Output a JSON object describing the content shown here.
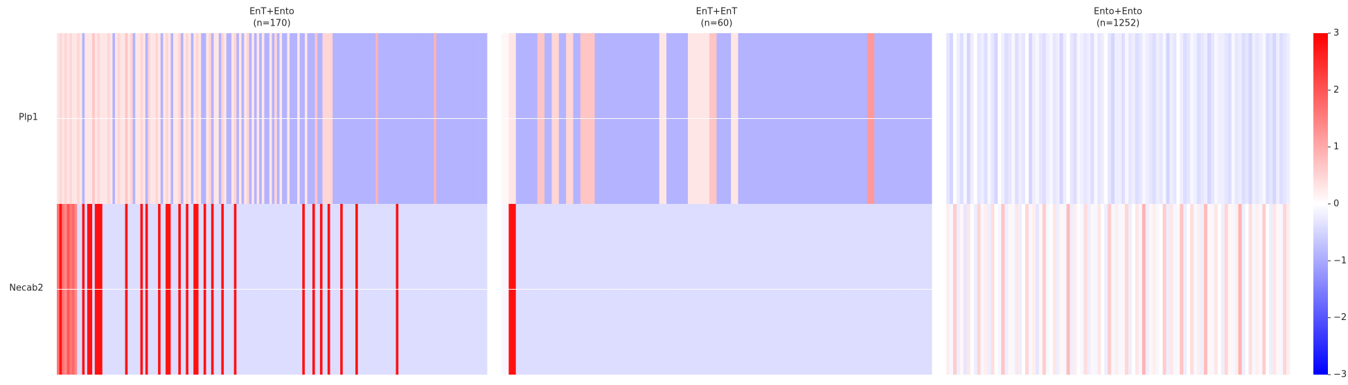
{
  "chart_data": {
    "type": "heatmap",
    "rows": [
      "Plp1",
      "Necab2"
    ],
    "colormap": [
      "#0000ff",
      "#ffffff",
      "#ff0000"
    ],
    "vlim": [
      -3,
      3
    ],
    "ticks": [
      {
        "value": -3,
        "label": "−3"
      },
      {
        "value": -2,
        "label": "−2"
      },
      {
        "value": -1,
        "label": "−1"
      },
      0,
      1,
      2,
      3
    ],
    "panels": [
      {
        "title": "EnT+Ento",
        "subtitle": "(n=170)",
        "values": [
          [
            0.3,
            0.5,
            0.3,
            0.5,
            0.3,
            0.5,
            0.3,
            0.3,
            0.5,
            0.3,
            -0.9,
            0.3,
            0.3,
            0.3,
            0.7,
            0.3,
            0.5,
            0.3,
            0.3,
            0.3,
            0.5,
            0.3,
            -0.9,
            0.3,
            0.5,
            0.3,
            0.3,
            0.7,
            0.3,
            0.5,
            -0.9,
            0.3,
            0.3,
            0.5,
            0.3,
            -0.9,
            0.5,
            0.3,
            0.3,
            0.5,
            0.3,
            -0.9,
            0.3,
            0.5,
            0.3,
            -0.9,
            0.3,
            0.3,
            0.5,
            -0.9,
            0.3,
            0.5,
            0.3,
            -0.9,
            0.3,
            0.5,
            0.3,
            -0.9,
            -0.9,
            0.3,
            0.5,
            -0.9,
            0.3,
            0.3,
            -0.9,
            0.5,
            0.3,
            -0.9,
            -0.9,
            0.3,
            0.5,
            -0.9,
            0.3,
            -0.9,
            0.3,
            0.5,
            -0.9,
            0.3,
            -0.9,
            0.3,
            -0.9,
            0.3,
            -0.9,
            -0.9,
            0.3,
            -0.9,
            0.5,
            -0.9,
            0.3,
            -0.9,
            -0.9,
            0.3,
            -0.9,
            -0.9,
            -0.9,
            0.3,
            -0.9,
            -0.9,
            0.3,
            -0.9,
            -0.9,
            -0.9,
            0.7,
            -0.9,
            -0.9,
            0.5,
            0.5,
            0.5,
            0.5,
            -0.9,
            -0.9,
            -0.9,
            -0.9,
            -0.9,
            -0.9,
            -0.9,
            -0.9,
            -0.9,
            -0.9,
            -0.9,
            -0.9,
            -0.9,
            -0.9,
            -0.9,
            -0.9,
            -0.9,
            0.9,
            -0.9,
            -0.9,
            -0.9,
            -0.9,
            -0.9,
            -0.9,
            -0.9,
            -0.9,
            -0.9,
            -0.9,
            -0.9,
            -0.9,
            -0.9,
            -0.9,
            -0.9,
            -0.9,
            -0.9,
            -0.9,
            -0.9,
            -0.9,
            -0.9,
            -0.9,
            0.9,
            -0.9,
            -0.9,
            -0.9,
            -0.9,
            -0.9,
            -0.9,
            -0.9,
            -0.9,
            -0.9,
            -0.9,
            -0.9,
            -0.9,
            -0.9,
            -0.9,
            -0.9,
            -0.9,
            -0.9,
            -0.9,
            -0.9,
            -0.9
          ],
          [
            1.6,
            2.8,
            1.6,
            1.4,
            2.0,
            1.6,
            1.8,
            1.4,
            -0.4,
            -0.4,
            2.8,
            -0.4,
            2.8,
            2.8,
            -0.4,
            2.8,
            2.8,
            2.8,
            -0.4,
            -0.4,
            -0.4,
            -0.4,
            -0.4,
            -0.4,
            -0.4,
            -0.4,
            -0.4,
            2.8,
            -0.4,
            -0.4,
            -0.4,
            -0.4,
            -0.4,
            2.8,
            -0.4,
            2.8,
            -0.4,
            -0.4,
            -0.4,
            -0.4,
            2.8,
            -0.4,
            -0.4,
            2.8,
            2.8,
            -0.4,
            -0.4,
            -0.4,
            2.8,
            -0.4,
            -0.4,
            2.8,
            -0.4,
            -0.4,
            2.8,
            2.8,
            -0.4,
            -0.4,
            2.8,
            -0.4,
            -0.4,
            2.8,
            -0.4,
            -0.4,
            -0.4,
            2.8,
            -0.4,
            -0.4,
            -0.4,
            -0.4,
            2.8,
            -0.4,
            -0.4,
            -0.4,
            -0.4,
            -0.4,
            -0.4,
            -0.4,
            -0.4,
            -0.4,
            -0.4,
            -0.4,
            -0.4,
            -0.4,
            -0.4,
            -0.4,
            -0.4,
            -0.4,
            -0.4,
            -0.4,
            -0.4,
            -0.4,
            -0.4,
            -0.4,
            -0.4,
            -0.4,
            -0.4,
            2.8,
            -0.4,
            -0.4,
            -0.4,
            2.8,
            -0.4,
            -0.4,
            2.8,
            -0.4,
            -0.4,
            2.8,
            -0.4,
            -0.4,
            -0.4,
            -0.4,
            2.8,
            -0.4,
            -0.4,
            -0.4,
            -0.4,
            -0.4,
            2.8,
            -0.4,
            -0.4,
            -0.4,
            -0.4,
            -0.4,
            -0.4,
            -0.4,
            -0.4,
            -0.4,
            -0.4,
            -0.4,
            -0.4,
            -0.4,
            -0.4,
            -0.4,
            2.8,
            -0.4,
            -0.4,
            -0.4,
            -0.4,
            -0.4,
            -0.4,
            -0.4,
            -0.4,
            -0.4,
            -0.4,
            -0.4,
            -0.4,
            -0.4,
            -0.4,
            -0.4,
            -0.4,
            -0.4,
            -0.4,
            -0.4,
            -0.4,
            -0.4,
            -0.4,
            -0.4,
            -0.4,
            -0.4,
            -0.4,
            -0.4,
            -0.4,
            -0.4,
            -0.4,
            -0.4,
            -0.4,
            -0.4,
            -0.4,
            -0.4
          ]
        ]
      },
      {
        "title": "EnT+EnT",
        "subtitle": "(n=60)",
        "values": [
          [
            0.1,
            0.3,
            -0.9,
            -0.9,
            -0.9,
            0.7,
            -0.9,
            0.5,
            -0.9,
            0.5,
            -0.9,
            0.7,
            0.7,
            -0.9,
            -0.9,
            -0.9,
            -0.9,
            -0.9,
            -0.9,
            -0.9,
            -0.9,
            -0.9,
            0.3,
            -0.9,
            -0.9,
            -0.9,
            0.3,
            0.3,
            0.3,
            0.7,
            -0.9,
            -0.9,
            0.3,
            -0.9,
            -0.9,
            -0.9,
            -0.9,
            -0.9,
            -0.9,
            -0.9,
            -0.9,
            -0.9,
            -0.9,
            -0.9,
            -0.9,
            -0.9,
            -0.9,
            -0.9,
            -0.9,
            -0.9,
            -0.9,
            1.2,
            -0.9,
            -0.9,
            -0.9,
            -0.9,
            -0.9,
            -0.9,
            -0.9,
            -0.9
          ],
          [
            -0.1,
            2.8,
            -0.4,
            -0.4,
            -0.4,
            -0.4,
            -0.4,
            -0.4,
            -0.4,
            -0.4,
            -0.4,
            -0.4,
            -0.4,
            -0.4,
            -0.4,
            -0.4,
            -0.4,
            -0.4,
            -0.4,
            -0.4,
            -0.4,
            -0.4,
            -0.4,
            -0.4,
            -0.4,
            -0.4,
            -0.4,
            -0.4,
            -0.4,
            -0.4,
            -0.4,
            -0.4,
            -0.4,
            -0.4,
            -0.4,
            -0.4,
            -0.4,
            -0.4,
            -0.4,
            -0.4,
            -0.4,
            -0.4,
            -0.4,
            -0.4,
            -0.4,
            -0.4,
            -0.4,
            -0.4,
            -0.4,
            -0.4,
            -0.4,
            -0.4,
            -0.4,
            -0.4,
            -0.4,
            -0.4,
            -0.4,
            -0.4,
            -0.4,
            -0.4
          ]
        ]
      },
      {
        "title": "Ento+Ento",
        "subtitle": "(n=1252)",
        "values": [
          [
            -0.3,
            -0.5,
            0.0,
            -0.2,
            -0.4,
            -0.1,
            -0.5,
            -0.2,
            0.0,
            -0.3,
            -0.2,
            -0.4,
            -0.1,
            -0.3,
            -0.5,
            0.0,
            -0.2,
            -0.4,
            -0.3,
            -0.1,
            -0.4,
            -0.2,
            -0.3,
            0.0,
            -0.5,
            -0.2,
            -0.1,
            -0.3,
            -0.4,
            -0.2,
            -0.1,
            -0.3,
            -0.2,
            -0.5,
            -0.2,
            0.0,
            -0.3,
            -0.4,
            -0.1,
            -0.2,
            -0.3,
            -0.2,
            -0.4,
            -0.1,
            -0.3,
            -0.2,
            0.0,
            -0.3,
            -0.5,
            -0.2,
            -0.2,
            -0.4,
            -0.1,
            -0.3,
            -0.2,
            -0.4,
            -0.3,
            -0.1,
            -0.2,
            -0.3,
            -0.4,
            -0.2,
            -0.3,
            -0.1,
            -0.5,
            -0.2,
            -0.3,
            0.0,
            -0.2,
            -0.4,
            -0.3,
            -0.1,
            -0.2,
            -0.4,
            -0.3,
            -0.2,
            -0.5,
            -0.3,
            -0.1,
            -0.2,
            -0.2,
            -0.3,
            -0.4,
            -0.1,
            -0.3,
            -0.2,
            -0.4,
            -0.3,
            -0.5,
            -0.2,
            -0.3,
            -0.2,
            -0.1,
            -0.4,
            -0.3,
            -0.5,
            -0.2,
            -0.4,
            -0.3,
            -0.2
          ],
          [
            0.2,
            -0.1,
            0.6,
            -0.2,
            0.1,
            -0.3,
            0.3,
            0.0,
            -0.2,
            0.5,
            -0.1,
            0.2,
            -0.2,
            0.4,
            0.0,
            -0.1,
            0.7,
            -0.2,
            0.1,
            -0.1,
            0.3,
            -0.2,
            0.0,
            0.5,
            -0.1,
            0.2,
            -0.3,
            0.1,
            0.6,
            -0.1,
            0.0,
            0.3,
            -0.2,
            0.1,
            -0.1,
            0.8,
            -0.2,
            0.2,
            0.0,
            -0.1,
            0.4,
            -0.2,
            0.1,
            -0.1,
            0.3,
            0.0,
            -0.2,
            0.6,
            -0.1,
            0.2,
            -0.1,
            0.1,
            0.5,
            -0.2,
            0.0,
            0.3,
            -0.1,
            0.9,
            -0.2,
            0.1,
            0.2,
            -0.1,
            0.0,
            0.6,
            -0.2,
            0.3,
            -0.1,
            0.1,
            0.7,
            -0.2,
            0.0,
            0.4,
            -0.1,
            0.2,
            -0.2,
            0.8,
            0.1,
            -0.1,
            0.3,
            0.0,
            -0.2,
            0.5,
            0.1,
            -0.1,
            0.2,
            0.9,
            -0.2,
            0.0,
            0.4,
            -0.1,
            0.2,
            -0.1,
            0.6,
            0.0,
            -0.2,
            0.3,
            0.1,
            -0.1,
            0.5,
            0.2
          ]
        ]
      }
    ]
  }
}
